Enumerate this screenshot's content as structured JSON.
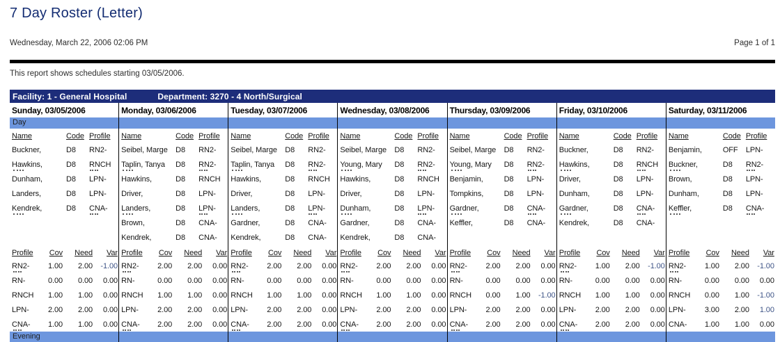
{
  "report": {
    "title": "7 Day Roster (Letter)",
    "generated": "Wednesday, March 22, 2006 02:06 PM",
    "page": "Page 1 of 1",
    "description": "This report shows schedules starting 03/05/2006.",
    "facility_label": "Facility: 1 - General Hospital",
    "department_label": "Department: 3270 - 4 North/Surgical"
  },
  "colors": {
    "title_navy": "#132c72",
    "navy": "#1d2d7a",
    "band_blue": "#6d96de",
    "var_blue": "#3d5386"
  },
  "sections": {
    "day_label": "Day",
    "evening_label": "Evening"
  },
  "roster_headers": {
    "name": "Name",
    "code": "Code",
    "profile": "Profile"
  },
  "summary_headers": {
    "profile": "Profile",
    "cov": "Cov",
    "need": "Need",
    "var": "Var"
  },
  "days": [
    {
      "header": "Sunday, 03/05/2006",
      "staff": [
        {
          "name": "Buckner,",
          "code": "D8",
          "profile": "RN2-",
          "clip": false
        },
        {
          "name": "Hawkins,",
          "code": "D8",
          "profile": "RNCH",
          "clip": true
        },
        {
          "name": "Dunham,",
          "code": "D8",
          "profile": "LPN-",
          "clip": false
        },
        {
          "name": "Landers,",
          "code": "D8",
          "profile": "LPN-",
          "clip": false
        },
        {
          "name": "Kendrek,",
          "code": "D8",
          "profile": "CNA-",
          "clip": true
        }
      ],
      "summary": [
        {
          "profile": "RN2-",
          "cov": "1.00",
          "need": "2.00",
          "var": "-1.00",
          "clip": true
        },
        {
          "profile": "RN-",
          "cov": "0.00",
          "need": "0.00",
          "var": "0.00",
          "clip": false
        },
        {
          "profile": "RNCH",
          "cov": "1.00",
          "need": "1.00",
          "var": "0.00",
          "clip": false
        },
        {
          "profile": "LPN-",
          "cov": "2.00",
          "need": "2.00",
          "var": "0.00",
          "clip": false
        },
        {
          "profile": "CNA-",
          "cov": "1.00",
          "need": "1.00",
          "var": "0.00",
          "clip": true
        }
      ]
    },
    {
      "header": "Monday, 03/06/2006",
      "staff": [
        {
          "name": "Seibel, Marge",
          "code": "D8",
          "profile": "RN2-",
          "clip": false
        },
        {
          "name": "Taplin, Tanya",
          "code": "D8",
          "profile": "RN2-",
          "clip": true
        },
        {
          "name": "Hawkins,",
          "code": "D8",
          "profile": "RNCH",
          "clip": false
        },
        {
          "name": "Driver,",
          "code": "D8",
          "profile": "LPN-",
          "clip": false
        },
        {
          "name": "Landers,",
          "code": "D8",
          "profile": "LPN-",
          "clip": true
        },
        {
          "name": "Brown,",
          "code": "D8",
          "profile": "CNA-",
          "clip": false
        },
        {
          "name": "Kendrek,",
          "code": "D8",
          "profile": "CNA-",
          "clip": false
        }
      ],
      "summary": [
        {
          "profile": "RN2-",
          "cov": "2.00",
          "need": "2.00",
          "var": "0.00",
          "clip": true
        },
        {
          "profile": "RN-",
          "cov": "0.00",
          "need": "0.00",
          "var": "0.00",
          "clip": false
        },
        {
          "profile": "RNCH",
          "cov": "1.00",
          "need": "1.00",
          "var": "0.00",
          "clip": false
        },
        {
          "profile": "LPN-",
          "cov": "2.00",
          "need": "2.00",
          "var": "0.00",
          "clip": false
        },
        {
          "profile": "CNA-",
          "cov": "2.00",
          "need": "2.00",
          "var": "0.00",
          "clip": true
        }
      ]
    },
    {
      "header": "Tuesday, 03/07/2006",
      "staff": [
        {
          "name": "Seibel, Marge",
          "code": "D8",
          "profile": "RN2-",
          "clip": false
        },
        {
          "name": "Taplin, Tanya",
          "code": "D8",
          "profile": "RN2-",
          "clip": true
        },
        {
          "name": "Hawkins,",
          "code": "D8",
          "profile": "RNCH",
          "clip": false
        },
        {
          "name": "Driver,",
          "code": "D8",
          "profile": "LPN-",
          "clip": false
        },
        {
          "name": "Landers,",
          "code": "D8",
          "profile": "LPN-",
          "clip": true
        },
        {
          "name": "Gardner,",
          "code": "D8",
          "profile": "CNA-",
          "clip": false
        },
        {
          "name": "Kendrek,",
          "code": "D8",
          "profile": "CNA-",
          "clip": false
        }
      ],
      "summary": [
        {
          "profile": "RN2-",
          "cov": "2.00",
          "need": "2.00",
          "var": "0.00",
          "clip": true
        },
        {
          "profile": "RN-",
          "cov": "0.00",
          "need": "0.00",
          "var": "0.00",
          "clip": false
        },
        {
          "profile": "RNCH",
          "cov": "1.00",
          "need": "1.00",
          "var": "0.00",
          "clip": false
        },
        {
          "profile": "LPN-",
          "cov": "2.00",
          "need": "2.00",
          "var": "0.00",
          "clip": false
        },
        {
          "profile": "CNA-",
          "cov": "2.00",
          "need": "2.00",
          "var": "0.00",
          "clip": true
        }
      ]
    },
    {
      "header": "Wednesday, 03/08/2006",
      "staff": [
        {
          "name": "Seibel, Marge",
          "code": "D8",
          "profile": "RN2-",
          "clip": false
        },
        {
          "name": "Young, Mary",
          "code": "D8",
          "profile": "RN2-",
          "clip": true
        },
        {
          "name": "Hawkins,",
          "code": "D8",
          "profile": "RNCH",
          "clip": false
        },
        {
          "name": "Driver,",
          "code": "D8",
          "profile": "LPN-",
          "clip": false
        },
        {
          "name": "Dunham,",
          "code": "D8",
          "profile": "LPN-",
          "clip": true
        },
        {
          "name": "Gardner,",
          "code": "D8",
          "profile": "CNA-",
          "clip": false
        },
        {
          "name": "Kendrek,",
          "code": "D8",
          "profile": "CNA-",
          "clip": false
        }
      ],
      "summary": [
        {
          "profile": "RN2-",
          "cov": "2.00",
          "need": "2.00",
          "var": "0.00",
          "clip": true
        },
        {
          "profile": "RN-",
          "cov": "0.00",
          "need": "0.00",
          "var": "0.00",
          "clip": false
        },
        {
          "profile": "RNCH",
          "cov": "1.00",
          "need": "1.00",
          "var": "0.00",
          "clip": false
        },
        {
          "profile": "LPN-",
          "cov": "2.00",
          "need": "2.00",
          "var": "0.00",
          "clip": false
        },
        {
          "profile": "CNA-",
          "cov": "2.00",
          "need": "2.00",
          "var": "0.00",
          "clip": true
        }
      ]
    },
    {
      "header": "Thursday, 03/09/2006",
      "staff": [
        {
          "name": "Seibel, Marge",
          "code": "D8",
          "profile": "RN2-",
          "clip": false
        },
        {
          "name": "Young, Mary",
          "code": "D8",
          "profile": "RN2-",
          "clip": true
        },
        {
          "name": "Benjamin,",
          "code": "D8",
          "profile": "LPN-",
          "clip": false
        },
        {
          "name": "Tompkins,",
          "code": "D8",
          "profile": "LPN-",
          "clip": false
        },
        {
          "name": "Gardner,",
          "code": "D8",
          "profile": "CNA-",
          "clip": true
        },
        {
          "name": "Keffler,",
          "code": "D8",
          "profile": "CNA-",
          "clip": false
        }
      ],
      "summary": [
        {
          "profile": "RN2-",
          "cov": "2.00",
          "need": "2.00",
          "var": "0.00",
          "clip": true
        },
        {
          "profile": "RN-",
          "cov": "0.00",
          "need": "0.00",
          "var": "0.00",
          "clip": false
        },
        {
          "profile": "RNCH",
          "cov": "0.00",
          "need": "1.00",
          "var": "-1.00",
          "clip": false
        },
        {
          "profile": "LPN-",
          "cov": "2.00",
          "need": "2.00",
          "var": "0.00",
          "clip": false
        },
        {
          "profile": "CNA-",
          "cov": "2.00",
          "need": "2.00",
          "var": "0.00",
          "clip": true
        }
      ]
    },
    {
      "header": "Friday, 03/10/2006",
      "staff": [
        {
          "name": "Buckner,",
          "code": "D8",
          "profile": "RN2-",
          "clip": false
        },
        {
          "name": "Hawkins,",
          "code": "D8",
          "profile": "RNCH",
          "clip": true
        },
        {
          "name": "Driver,",
          "code": "D8",
          "profile": "LPN-",
          "clip": false
        },
        {
          "name": "Dunham,",
          "code": "D8",
          "profile": "LPN-",
          "clip": false
        },
        {
          "name": "Gardner,",
          "code": "D8",
          "profile": "CNA-",
          "clip": true
        },
        {
          "name": "Kendrek,",
          "code": "D8",
          "profile": "CNA-",
          "clip": false
        }
      ],
      "summary": [
        {
          "profile": "RN2-",
          "cov": "1.00",
          "need": "2.00",
          "var": "-1.00",
          "clip": true
        },
        {
          "profile": "RN-",
          "cov": "0.00",
          "need": "0.00",
          "var": "0.00",
          "clip": false
        },
        {
          "profile": "RNCH",
          "cov": "1.00",
          "need": "1.00",
          "var": "0.00",
          "clip": false
        },
        {
          "profile": "LPN-",
          "cov": "2.00",
          "need": "2.00",
          "var": "0.00",
          "clip": false
        },
        {
          "profile": "CNA-",
          "cov": "2.00",
          "need": "2.00",
          "var": "0.00",
          "clip": true
        }
      ]
    },
    {
      "header": "Saturday, 03/11/2006",
      "staff": [
        {
          "name": "Benjamin,",
          "code": "OFF",
          "profile": "LPN-",
          "clip": false
        },
        {
          "name": "Buckner,",
          "code": "D8",
          "profile": "RN2-",
          "clip": true
        },
        {
          "name": "Brown,",
          "code": "D8",
          "profile": "LPN-",
          "clip": false
        },
        {
          "name": "Dunham,",
          "code": "D8",
          "profile": "LPN-",
          "clip": false
        },
        {
          "name": "Keffler,",
          "code": "D8",
          "profile": "CNA-",
          "clip": true
        }
      ],
      "summary": [
        {
          "profile": "RN2-",
          "cov": "1.00",
          "need": "2.00",
          "var": "-1.00",
          "clip": true
        },
        {
          "profile": "RN-",
          "cov": "0.00",
          "need": "0.00",
          "var": "0.00",
          "clip": false
        },
        {
          "profile": "RNCH",
          "cov": "0.00",
          "need": "1.00",
          "var": "-1.00",
          "clip": false
        },
        {
          "profile": "LPN-",
          "cov": "3.00",
          "need": "2.00",
          "var": "1.00",
          "clip": false
        },
        {
          "profile": "CNA-",
          "cov": "1.00",
          "need": "1.00",
          "var": "0.00",
          "clip": false
        }
      ]
    }
  ]
}
